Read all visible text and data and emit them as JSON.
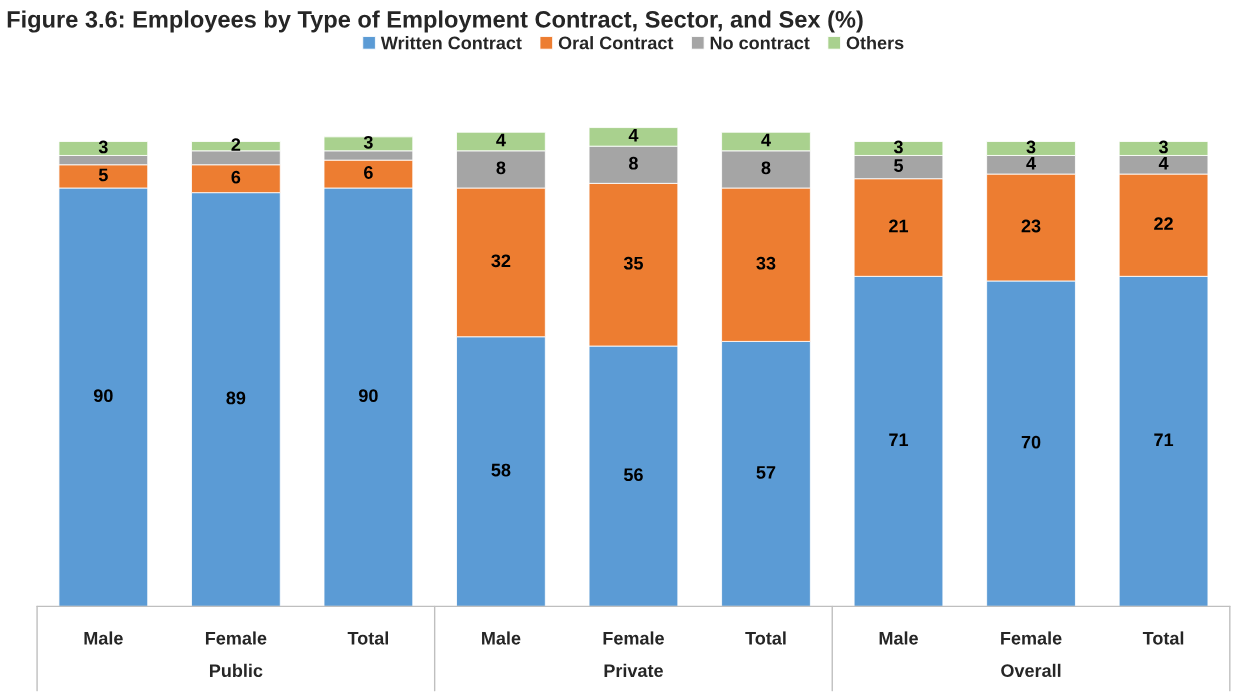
{
  "chart_data": {
    "type": "bar",
    "stacked": true,
    "title": "Figure 3.6: Employees by Type of Employment Contract, Sector, and Sex (%)",
    "categories": [
      "Male",
      "Female",
      "Total",
      "Male",
      "Female",
      "Total",
      "Male",
      "Female",
      "Total"
    ],
    "annotations": [
      "Public",
      "Private",
      "Overall"
    ],
    "legend": "top",
    "series": [
      {
        "name": "Written Contract",
        "color": "#5b9bd5",
        "values": [
          90,
          89,
          90,
          58,
          56,
          57,
          71,
          70,
          71
        ]
      },
      {
        "name": "Oral Contract",
        "color": "#ed7d31",
        "values": [
          5,
          6,
          6,
          32,
          35,
          33,
          21,
          23,
          22
        ]
      },
      {
        "name": "No contract",
        "color": "#a5a5a5",
        "values": [
          2,
          3,
          2,
          8,
          8,
          8,
          5,
          4,
          4
        ],
        "value_labels": [
          null,
          null,
          null,
          "8",
          "8",
          "8",
          "5",
          "4",
          "4"
        ]
      },
      {
        "name": "Others",
        "color": "#a9d18e",
        "values": [
          3,
          2,
          3,
          4,
          4,
          4,
          3,
          3,
          3
        ]
      }
    ],
    "data_labels": true
  }
}
